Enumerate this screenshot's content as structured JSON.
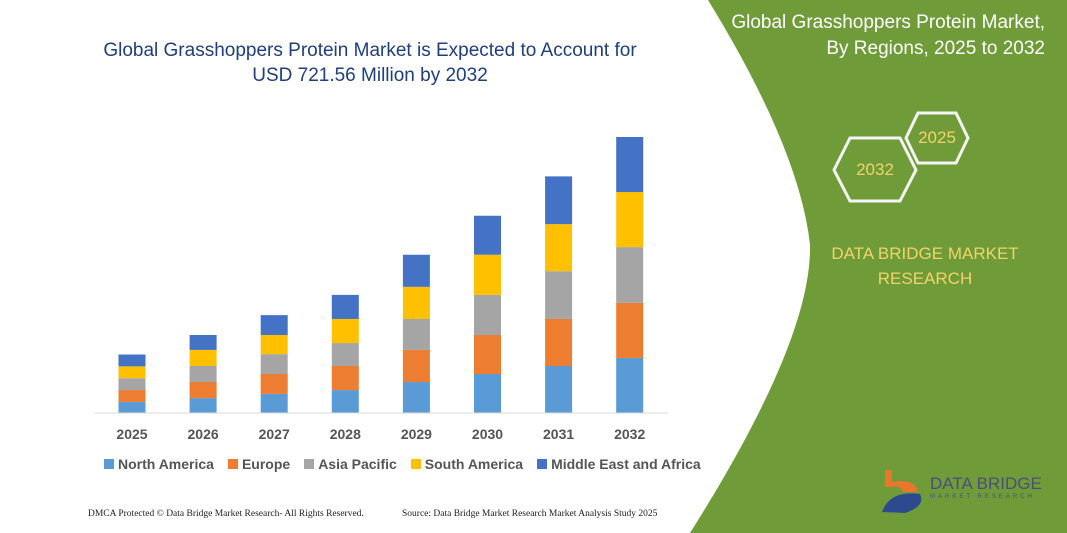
{
  "header": {
    "title_line1": "Global Grasshoppers Protein Market is Expected to Account for",
    "title_line2": "USD 721.56 Million by 2032"
  },
  "panel": {
    "title_line1": "Global Grasshoppers Protein Market,",
    "title_line2": "By Regions, 2025 to 2032",
    "hex_start": "2025",
    "hex_end": "2032",
    "brand_line1": "DATA BRIDGE MARKET",
    "brand_line2": "RESEARCH",
    "logo_text": "DATA BRIDGE",
    "logo_sub": "MARKET RESEARCH",
    "color": "#6f9c38"
  },
  "footer": {
    "left": "DMCA Protected © Data Bridge Market Research-  All Rights Reserved.",
    "right": "Source: Data Bridge Market Research  Market Analysis Study 2025"
  },
  "chart_data": {
    "type": "bar",
    "stacked": true,
    "categories": [
      "2025",
      "2026",
      "2027",
      "2028",
      "2029",
      "2030",
      "2031",
      "2032"
    ],
    "series": [
      {
        "name": "North America",
        "color": "#5b9bd5",
        "values": [
          29,
          39,
          50,
          60,
          81,
          102,
          123,
          144
        ]
      },
      {
        "name": "Europe",
        "color": "#ed7d31",
        "values": [
          31,
          42,
          52,
          63,
          84,
          102,
          123,
          144
        ]
      },
      {
        "name": "Asia Pacific",
        "color": "#a5a5a5",
        "values": [
          31,
          42,
          52,
          60,
          81,
          105,
          125,
          146
        ]
      },
      {
        "name": "South America",
        "color": "#ffc000",
        "values": [
          31,
          42,
          50,
          63,
          84,
          105,
          123,
          144
        ]
      },
      {
        "name": "Middle East and Africa",
        "color": "#4472c4",
        "values": [
          31,
          39,
          52,
          63,
          84,
          102,
          125,
          144
        ]
      }
    ],
    "ylabel": "",
    "xlabel": "",
    "grid": false,
    "legend": "bottom"
  }
}
